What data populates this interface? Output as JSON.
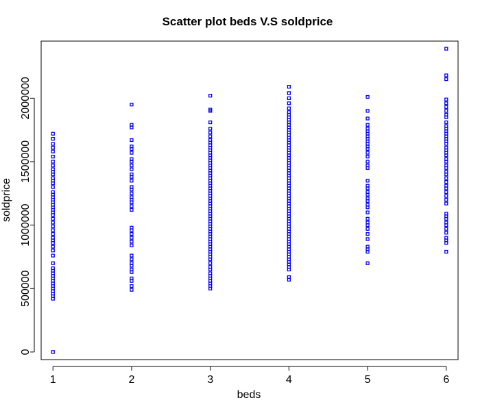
{
  "chart_data": {
    "type": "scatter",
    "title": "Scatter plot beds V.S soldprice",
    "xlabel": "beds",
    "ylabel": "soldprice",
    "xlim": [
      0.85,
      6.15
    ],
    "ylim": [
      -60000,
      2450000
    ],
    "xticks": [
      1,
      2,
      3,
      4,
      5,
      6
    ],
    "yticks": [
      0,
      500000,
      1000000,
      1500000,
      2000000
    ],
    "ytick_labels": [
      "0",
      "500000",
      "1000000",
      "1500000",
      "2000000"
    ],
    "point_color": "#0000ff",
    "series": [
      {
        "x": 1,
        "y": [
          0,
          420000,
          440000,
          460000,
          480000,
          500000,
          520000,
          540000,
          560000,
          580000,
          600000,
          620000,
          640000,
          660000,
          700000,
          760000,
          800000,
          830000,
          860000,
          880000,
          900000,
          930000,
          960000,
          990000,
          1020000,
          1050000,
          1080000,
          1100000,
          1120000,
          1140000,
          1160000,
          1180000,
          1200000,
          1220000,
          1240000,
          1260000,
          1300000,
          1330000,
          1350000,
          1370000,
          1400000,
          1420000,
          1440000,
          1470000,
          1500000,
          1540000,
          1580000,
          1610000,
          1640000,
          1680000,
          1720000
        ]
      },
      {
        "x": 2,
        "y": [
          490000,
          520000,
          560000,
          580000,
          630000,
          650000,
          680000,
          700000,
          730000,
          760000,
          840000,
          870000,
          900000,
          930000,
          960000,
          980000,
          1120000,
          1150000,
          1180000,
          1200000,
          1220000,
          1250000,
          1280000,
          1300000,
          1350000,
          1380000,
          1400000,
          1440000,
          1470000,
          1500000,
          1520000,
          1570000,
          1600000,
          1620000,
          1670000,
          1770000,
          1790000,
          1950000
        ]
      },
      {
        "x": 3,
        "y": [
          500000,
          520000,
          540000,
          560000,
          580000,
          600000,
          620000,
          650000,
          670000,
          700000,
          730000,
          750000,
          770000,
          790000,
          810000,
          830000,
          850000,
          870000,
          890000,
          910000,
          930000,
          950000,
          970000,
          990000,
          1010000,
          1030000,
          1050000,
          1070000,
          1090000,
          1110000,
          1130000,
          1150000,
          1170000,
          1190000,
          1210000,
          1230000,
          1250000,
          1270000,
          1290000,
          1310000,
          1330000,
          1350000,
          1370000,
          1390000,
          1410000,
          1430000,
          1450000,
          1470000,
          1490000,
          1510000,
          1530000,
          1550000,
          1570000,
          1590000,
          1610000,
          1630000,
          1650000,
          1670000,
          1700000,
          1730000,
          1760000,
          1810000,
          1900000,
          1910000,
          2020000
        ]
      },
      {
        "x": 4,
        "y": [
          570000,
          590000,
          650000,
          670000,
          690000,
          710000,
          730000,
          750000,
          770000,
          790000,
          810000,
          830000,
          850000,
          870000,
          890000,
          910000,
          930000,
          950000,
          970000,
          990000,
          1010000,
          1030000,
          1050000,
          1070000,
          1090000,
          1110000,
          1130000,
          1150000,
          1170000,
          1190000,
          1210000,
          1230000,
          1250000,
          1270000,
          1290000,
          1310000,
          1330000,
          1350000,
          1370000,
          1390000,
          1410000,
          1430000,
          1450000,
          1470000,
          1490000,
          1510000,
          1530000,
          1550000,
          1570000,
          1590000,
          1610000,
          1630000,
          1650000,
          1670000,
          1690000,
          1710000,
          1730000,
          1750000,
          1770000,
          1790000,
          1810000,
          1830000,
          1850000,
          1870000,
          1890000,
          1920000,
          1960000,
          2000000,
          2040000,
          2090000
        ]
      },
      {
        "x": 5,
        "y": [
          700000,
          790000,
          810000,
          830000,
          890000,
          930000,
          970000,
          1000000,
          1020000,
          1050000,
          1100000,
          1140000,
          1160000,
          1190000,
          1210000,
          1240000,
          1260000,
          1290000,
          1310000,
          1350000,
          1450000,
          1470000,
          1500000,
          1540000,
          1570000,
          1600000,
          1620000,
          1640000,
          1660000,
          1680000,
          1700000,
          1720000,
          1740000,
          1760000,
          1790000,
          1840000,
          1900000,
          2010000
        ]
      },
      {
        "x": 6,
        "y": [
          790000,
          860000,
          880000,
          900000,
          940000,
          970000,
          1000000,
          1020000,
          1050000,
          1070000,
          1090000,
          1170000,
          1200000,
          1230000,
          1260000,
          1290000,
          1310000,
          1340000,
          1370000,
          1400000,
          1420000,
          1450000,
          1470000,
          1500000,
          1520000,
          1550000,
          1570000,
          1590000,
          1610000,
          1640000,
          1660000,
          1680000,
          1700000,
          1720000,
          1740000,
          1760000,
          1780000,
          1810000,
          1850000,
          1870000,
          1900000,
          1930000,
          1960000,
          1990000,
          2150000,
          2180000,
          2390000
        ]
      }
    ]
  }
}
